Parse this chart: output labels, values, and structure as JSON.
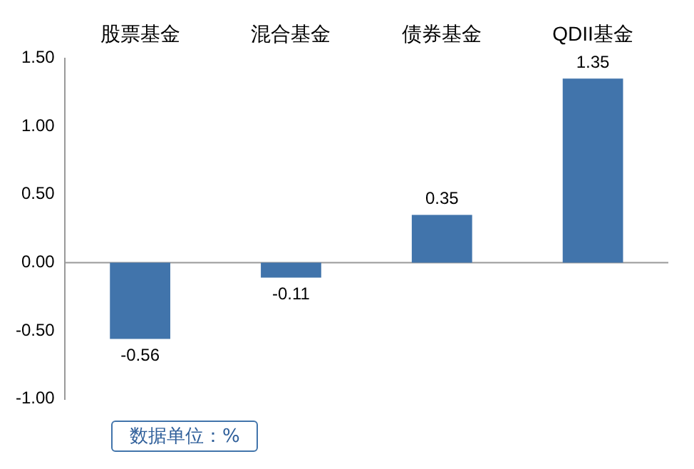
{
  "chart_data": {
    "type": "bar",
    "categories": [
      "股票基金",
      "混合基金",
      "债券基金",
      "QDII基金"
    ],
    "values": [
      -0.56,
      -0.11,
      0.35,
      1.35
    ],
    "color": "#4174ab",
    "ylim": [
      -1,
      1.5
    ],
    "yticks": [
      {
        "value": -1,
        "label": "-1.00"
      },
      {
        "value": -0.5,
        "label": "-0.50"
      },
      {
        "value": 0,
        "label": "0.00"
      },
      {
        "value": 0.5,
        "label": "0.50"
      },
      {
        "value": 1,
        "label": "1.00"
      },
      {
        "value": 1.5,
        "label": "1.50"
      }
    ],
    "data_labels": true,
    "grid": false,
    "ref_lines": [
      {
        "axis": "y",
        "value": 0,
        "color": "#999999"
      }
    ],
    "legend": false,
    "annotations": [
      "数据单位：%"
    ]
  }
}
